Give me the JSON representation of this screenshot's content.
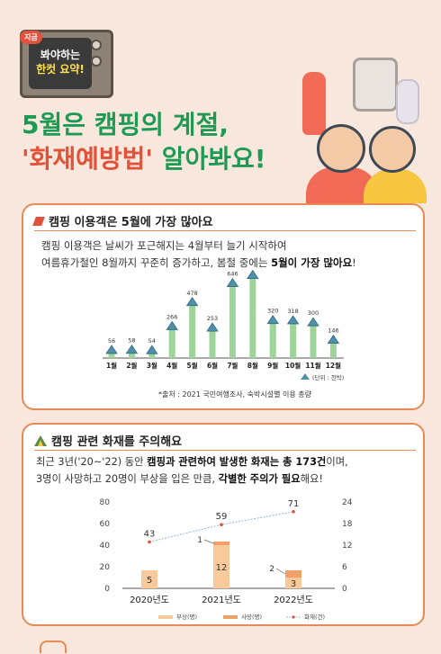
{
  "header": {
    "badge": "지금",
    "tv_line1": "봐야하는",
    "tv_line2": "한컷 요약!",
    "title_line1": "5월은 캠핑의 계절,",
    "title_line2_red": "'화재예방법'",
    "title_line2_rest": " 알아봐요!"
  },
  "section1": {
    "title": "캠핑 이용객은 5월에 가장 많아요",
    "body_line1": "캠핑 이용객은 날씨가 포근해지는 4월부터 늘기 시작하여",
    "body_line2_a": "여름휴가철인 8월까지 꾸준히 증가하고, 봄철 중에는 ",
    "body_line2_bold": "5월이 가장 많아요",
    "body_line2_end": "!",
    "unit": "(단위 : 천박)",
    "source": "*출처 : 2021 국민여행조사, 숙박시설별 이용 총량"
  },
  "section2": {
    "title": "캠핑 관련 화재를 주의해요",
    "body_line1_a": "최근 3년('20~'22) 동안 ",
    "body_line1_bold1": "캠핑과 관련하여 발생한 화재는 총 173건",
    "body_line1_b": "이며,",
    "body_line2_a": "3명이 사망하고 20명이 부상을 입은 만큼, ",
    "body_line2_bold": "각별한 주의가 필요",
    "body_line2_b": "해요!"
  },
  "colors": {
    "green": "#9ed39a",
    "green_dark": "#1e9a55",
    "red": "#e0533a",
    "orange": "#e98a55",
    "injury": "#f8c99a",
    "death": "#f0a068",
    "fire_line": "#e0533a"
  },
  "chart_data": [
    {
      "type": "bar",
      "categories": [
        "1월",
        "2월",
        "3월",
        "4월",
        "5월",
        "6월",
        "7월",
        "8월",
        "9월",
        "10월",
        "11월",
        "12월"
      ],
      "values": [
        56,
        58,
        54,
        266,
        478,
        253,
        646,
        717,
        320,
        318,
        300,
        146
      ],
      "ylim": [
        0,
        800
      ],
      "grid": false,
      "legend": "none",
      "icon": "tent-icon"
    },
    {
      "type": "bar",
      "categories": [
        "2020년도",
        "2021년도",
        "2022년도"
      ],
      "series": [
        {
          "name": "부상(명)",
          "values": [
            5,
            12,
            3
          ],
          "axis": "right"
        },
        {
          "name": "사망(명)",
          "values": [
            0,
            1,
            2
          ],
          "axis": "right"
        },
        {
          "name": "화재(건)",
          "type": "line",
          "values": [
            43,
            59,
            71
          ],
          "axis": "left"
        }
      ],
      "y_left_ticks": [
        0,
        20,
        40,
        60,
        80
      ],
      "y_right_ticks": [
        0,
        6,
        12,
        18,
        24
      ],
      "y_left_lim": [
        0,
        80
      ],
      "y_right_lim": [
        0,
        24
      ],
      "grid": false,
      "legend": "bottom"
    }
  ]
}
